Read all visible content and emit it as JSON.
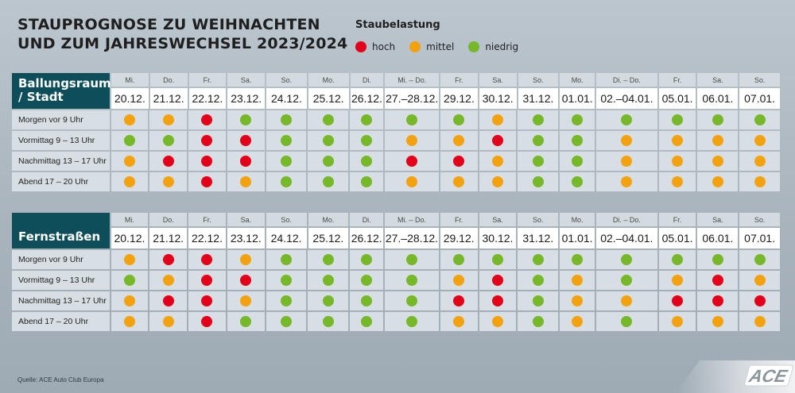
{
  "title": {
    "line1": "STAUPROGNOSE ZU WEIHNACHTEN",
    "line2": "UND ZUM JAHRESWECHSEL 2023/2024"
  },
  "legend": {
    "title": "Staubelastung",
    "items": [
      {
        "key": "h",
        "label": "hoch",
        "color": "#e2001a"
      },
      {
        "key": "m",
        "label": "mittel",
        "color": "#f2a20f"
      },
      {
        "key": "n",
        "label": "niedrig",
        "color": "#76b82a"
      }
    ]
  },
  "columns": [
    {
      "weekday": "Mi.",
      "date": "20.12."
    },
    {
      "weekday": "Do.",
      "date": "21.12."
    },
    {
      "weekday": "Fr.",
      "date": "22.12."
    },
    {
      "weekday": "Sa.",
      "date": "23.12."
    },
    {
      "weekday": "So.",
      "date": "24.12."
    },
    {
      "weekday": "Mo.",
      "date": "25.12."
    },
    {
      "weekday": "Di.",
      "date": "26.12."
    },
    {
      "weekday": "Mi. – Do.",
      "date": "27.–28.12."
    },
    {
      "weekday": "Fr.",
      "date": "29.12."
    },
    {
      "weekday": "Sa.",
      "date": "30.12."
    },
    {
      "weekday": "So.",
      "date": "31.12."
    },
    {
      "weekday": "Mo.",
      "date": "01.01."
    },
    {
      "weekday": "Di. – Do.",
      "date": "02.–04.01."
    },
    {
      "weekday": "Fr.",
      "date": "05.01."
    },
    {
      "weekday": "Sa.",
      "date": "06.01."
    },
    {
      "weekday": "So.",
      "date": "07.01."
    }
  ],
  "tables": [
    {
      "heading": "Ballungsraum / Stadt",
      "rows": [
        {
          "label": "Morgen vor 9 Uhr",
          "levels": "mmhnnnnnnmnnnnnn"
        },
        {
          "label": "Vormittag 9 – 13 Uhr",
          "levels": "nnhhnnnmmhnnmmmm"
        },
        {
          "label": "Nachmittag 13 – 17 Uhr",
          "levels": "mhhhnnnhhmnnmmmm"
        },
        {
          "label": "Abend 17 – 20 Uhr",
          "levels": "mmhmnnnmmmnnmmmm"
        }
      ]
    },
    {
      "heading": "Fernstraßen",
      "rows": [
        {
          "label": "Morgen vor 9 Uhr",
          "levels": "mhhmnnnnnnnnnnnn"
        },
        {
          "label": "Vormittag 9 – 13 Uhr",
          "levels": "nmhhnnnnmhnmnmhm"
        },
        {
          "label": "Nachmittag 13 – 17 Uhr",
          "levels": "mhhmnnnnhhnmmhhh"
        },
        {
          "label": "Abend 17 – 20 Uhr",
          "levels": "mmhnnnnnmmnmnmmm"
        }
      ]
    }
  ],
  "source": "Quelle: ACE Auto Club Europa",
  "logo": {
    "text": "ACE"
  }
}
